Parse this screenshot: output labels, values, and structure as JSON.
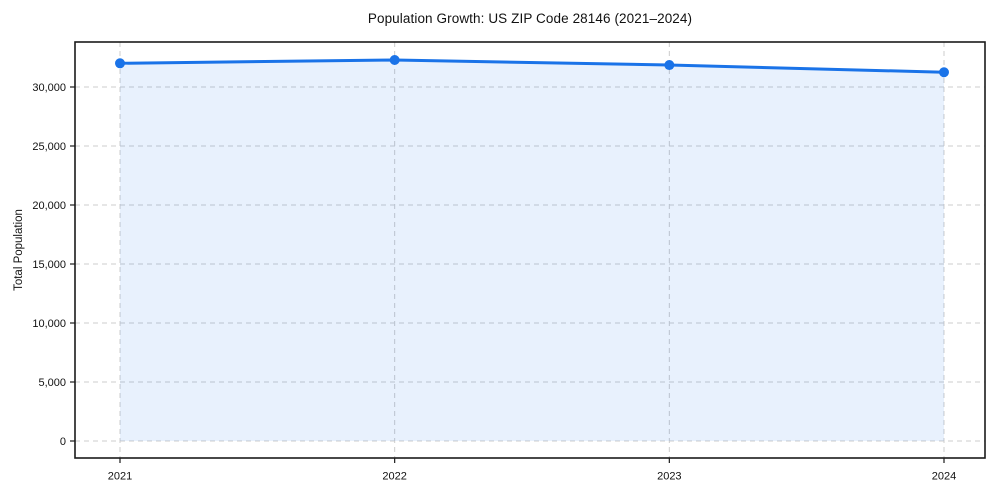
{
  "page": {
    "background": "#ffffff"
  },
  "chart_data": {
    "type": "area",
    "title": "Population Growth: US ZIP Code 28146 (2021–2024)",
    "xlabel": "",
    "ylabel": "Total Population",
    "x": [
      2021,
      2022,
      2023,
      2024
    ],
    "x_tick_labels": [
      "2021",
      "2022",
      "2023",
      "2024"
    ],
    "values": [
      32010,
      32290,
      31860,
      31250
    ],
    "series": [
      {
        "name": "Total Population",
        "values": [
          32010,
          32290,
          31860,
          31250
        ]
      }
    ],
    "y_ticks": [
      0,
      5000,
      10000,
      15000,
      20000,
      25000,
      30000
    ],
    "y_tick_labels": [
      "0",
      "5,000",
      "10,000",
      "15,000",
      "20,000",
      "25,000",
      "30,000"
    ],
    "ylim": [
      0,
      33800
    ],
    "grid": true,
    "grid_style": "dashed",
    "legend": false,
    "marker": "circle",
    "colors": {
      "line": "#1a73e8",
      "marker": "#1a73e8",
      "fill": "rgba(26,115,232,0.10)",
      "grid": "#cccccc",
      "spine": "#1a1a1a",
      "text": "#111111",
      "background": "#ffffff"
    }
  }
}
